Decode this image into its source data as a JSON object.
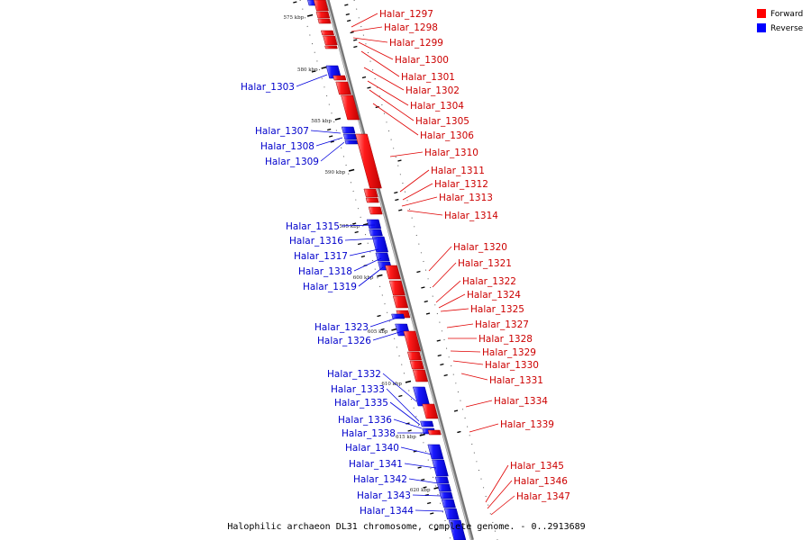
{
  "caption": "Halophilic archaeon DL31 chromosome, complete genome. - 0..2913689",
  "legend": [
    {
      "label": "Forward",
      "color": "#ff0000"
    },
    {
      "label": "Reverse",
      "color": "#0000ff"
    }
  ],
  "colors": {
    "forward": "#ff0000",
    "reverse": "#0000ff",
    "axis": "#888888"
  },
  "ticks": [
    "575 kbp",
    "580 kbp",
    "585 kbp",
    "590 kbp",
    "595 kbp",
    "600 kbp",
    "605 kbp",
    "610 kbp",
    "615 kbp",
    "620 kbp"
  ],
  "forward_genes": [
    "Halar_1297",
    "Halar_1298",
    "Halar_1299",
    "Halar_1300",
    "Halar_1301",
    "Halar_1302",
    "Halar_1304",
    "Halar_1305",
    "Halar_1306",
    "Halar_1310",
    "Halar_1311",
    "Halar_1312",
    "Halar_1313",
    "Halar_1314",
    "Halar_1320",
    "Halar_1321",
    "Halar_1322",
    "Halar_1324",
    "Halar_1325",
    "Halar_1327",
    "Halar_1328",
    "Halar_1329",
    "Halar_1330",
    "Halar_1331",
    "Halar_1334",
    "Halar_1339",
    "Halar_1345",
    "Halar_1346",
    "Halar_1347"
  ],
  "reverse_genes": [
    "Halar_1303",
    "Halar_1307",
    "Halar_1308",
    "Halar_1309",
    "Halar_1315",
    "Halar_1316",
    "Halar_1317",
    "Halar_1318",
    "Halar_1319",
    "Halar_1323",
    "Halar_1326",
    "Halar_1332",
    "Halar_1333",
    "Halar_1335",
    "Halar_1336",
    "Halar_1338",
    "Halar_1340",
    "Halar_1341",
    "Halar_1342",
    "Halar_1343",
    "Halar_1344"
  ]
}
